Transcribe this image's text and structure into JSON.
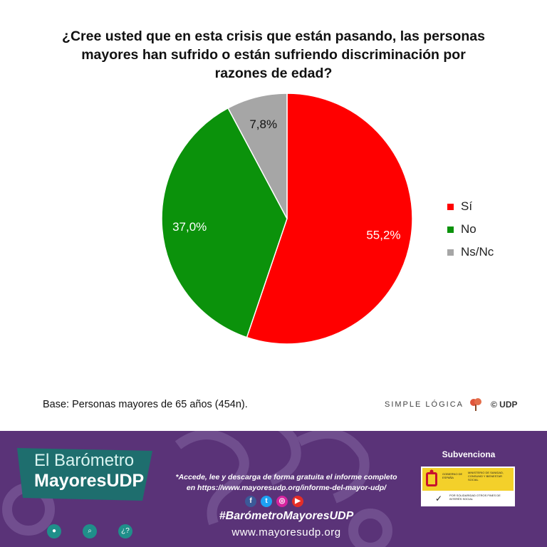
{
  "title_lines": [
    "¿Cree usted que en esta crisis que están pasando, las personas",
    "mayores han sufrido o están sufriendo discriminación por",
    "razones de edad?"
  ],
  "chart_data": {
    "type": "pie",
    "title": "¿Cree usted que en esta crisis que están pasando, las personas mayores han sufrido o están sufriendo discriminación por razones de edad?",
    "categories": [
      "Sí",
      "No",
      "Ns/Nc"
    ],
    "values": [
      55.2,
      37.0,
      7.8
    ],
    "labels": [
      "55,2%",
      "37,0%",
      "7,8%"
    ],
    "colors": [
      "#ff0000",
      "#0b920b",
      "#a6a6a6"
    ],
    "legend_position": "right",
    "start": "top, clockwise"
  },
  "legend": [
    {
      "label": "Sí",
      "color": "#ff0000"
    },
    {
      "label": "No",
      "color": "#0b920b"
    },
    {
      "label": "Ns/Nc",
      "color": "#a6a6a6"
    }
  ],
  "base_note": "Base: Personas mayores de 65 años (454n).",
  "brand": {
    "name": "SIMPLE LÓGICA",
    "copyright": "© UDP"
  },
  "footer": {
    "logo_line1": "El Barómetro",
    "logo_line2": "MayoresUDP",
    "promo_line1": "*Accede, lee y descarga de forma gratuita el informe completo",
    "promo_line2": "en https://www.mayoresudp.org/informe-del-mayor-udp/",
    "hashtag": "#BarómetroMayoresUDP",
    "website": "www.mayoresudp.org",
    "subvenciona": "Subvenciona",
    "gov_text_1": "GOBIERNO DE ESPAÑA",
    "gov_text_2": "MINISTERIO DE SANIDAD, CONSUMO Y BIENESTAR SOCIAL",
    "gov_text_3": "POR SOLIDARIDAD OTROS FINES DE INTERÉS SOCIAL",
    "socials": [
      "facebook-icon",
      "twitter-icon",
      "instagram-icon",
      "youtube-icon"
    ],
    "accent_colors": {
      "purple": "#5a3378",
      "teal": "#1e6e6e"
    }
  }
}
